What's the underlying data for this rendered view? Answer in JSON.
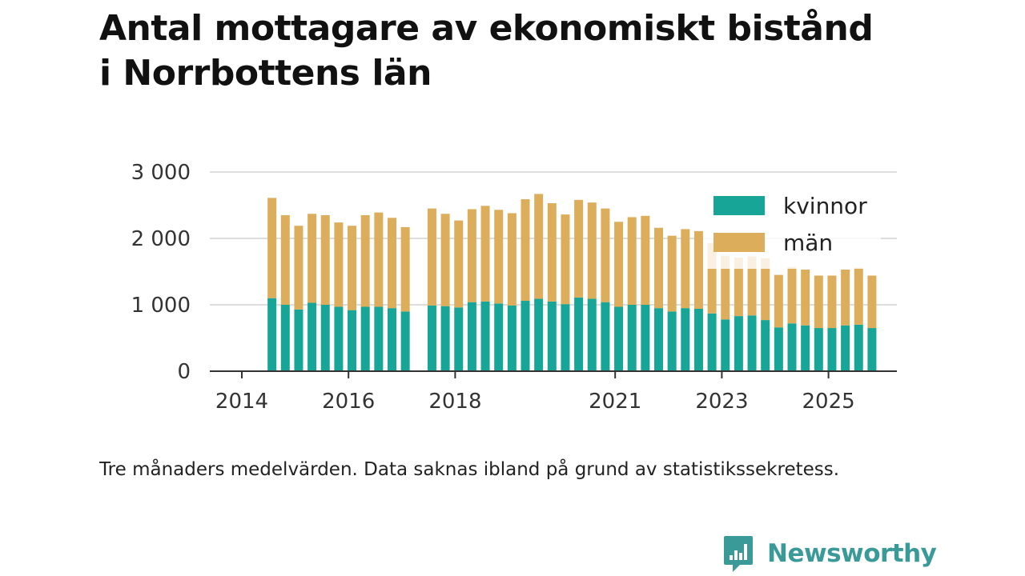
{
  "title_lines": [
    "Antal mottagare av ekonomiskt bistånd",
    "i Norrbottens län"
  ],
  "caption": "Tre månaders medelvärden. Data saknas ibland på grund av statistikssekretess.",
  "brand": {
    "name": "Newsworthy",
    "icon": "newsworthy-logo-icon"
  },
  "colors": {
    "kvinnor": "#16a596",
    "man": "#dcae5b",
    "grid": "#dddddd",
    "axis": "#333333",
    "brand": "#3a9a98"
  },
  "chart_data": {
    "type": "bar",
    "stacked": true,
    "title": "Antal mottagare av ekonomiskt bistånd i Norrbottens län",
    "xlabel": "",
    "ylabel": "",
    "ylim": [
      0,
      3000
    ],
    "xlim": [
      2014.0,
      2026.3
    ],
    "yticks": [
      0,
      1000,
      2000,
      3000
    ],
    "ytick_labels": [
      "0",
      "1 000",
      "2 000",
      "3 000"
    ],
    "xticks": [
      2014,
      2016,
      2018,
      2021,
      2023,
      2025
    ],
    "xtick_labels": [
      "2014",
      "2016",
      "2018",
      "2021",
      "2023",
      "2025"
    ],
    "legend_position": "top-right",
    "x": [
      2014.25,
      2014.5,
      2014.75,
      2015.0,
      2015.25,
      2015.5,
      2015.75,
      2016.0,
      2016.25,
      2016.5,
      2016.75,
      2017.25,
      2017.5,
      2017.75,
      2018.0,
      2018.25,
      2018.5,
      2018.75,
      2019.0,
      2019.25,
      2019.5,
      2019.75,
      2020.0,
      2020.25,
      2020.5,
      2020.75,
      2021.0,
      2021.25,
      2021.5,
      2021.75,
      2022.0,
      2022.25,
      2022.5,
      2022.75,
      2023.0,
      2023.25,
      2023.5,
      2023.75,
      2024.0,
      2024.25,
      2024.5,
      2024.75,
      2025.0,
      2025.25,
      2025.5
    ],
    "series": [
      {
        "name": "kvinnor",
        "values": [
          1100,
          1000,
          930,
          1030,
          1000,
          970,
          920,
          970,
          970,
          950,
          900,
          990,
          980,
          960,
          1040,
          1050,
          1020,
          990,
          1060,
          1090,
          1050,
          1010,
          1110,
          1090,
          1040,
          970,
          1000,
          1000,
          950,
          900,
          950,
          940,
          870,
          780,
          830,
          840,
          770,
          660,
          720,
          690,
          650,
          650,
          690,
          700,
          650
        ]
      },
      {
        "name": "män",
        "values": [
          1510,
          1350,
          1260,
          1340,
          1350,
          1270,
          1270,
          1380,
          1420,
          1360,
          1270,
          1460,
          1390,
          1310,
          1400,
          1440,
          1410,
          1390,
          1530,
          1580,
          1480,
          1350,
          1470,
          1450,
          1410,
          1280,
          1320,
          1340,
          1210,
          1140,
          1190,
          1170,
          1060,
          960,
          880,
          890,
          930,
          790,
          850,
          840,
          790,
          790,
          840,
          860,
          790
        ]
      }
    ]
  }
}
